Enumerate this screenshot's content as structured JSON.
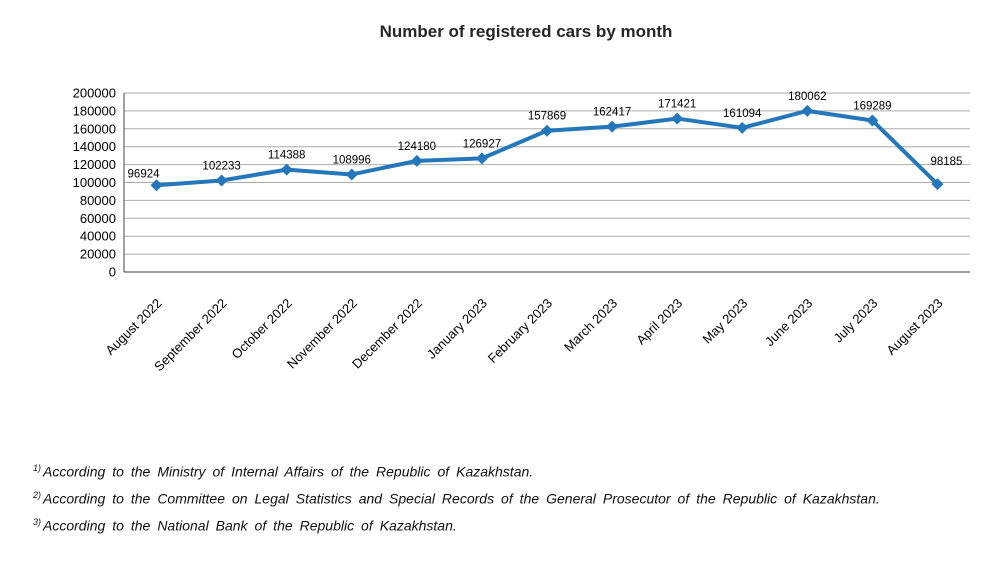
{
  "title": "Number of registered cars by month",
  "chart_data": {
    "type": "line",
    "title": "Number of registered cars by month",
    "categories": [
      "August 2022",
      "September 2022",
      "October 2022",
      "November 2022",
      "December 2022",
      "January 2023",
      "February 2023",
      "March 2023",
      "April 2023",
      "May 2023",
      "June 2023",
      "July 2023",
      "August 2023"
    ],
    "values": [
      96924,
      102233,
      114388,
      108996,
      124180,
      126927,
      157869,
      162417,
      171421,
      161094,
      180062,
      169289,
      98185
    ],
    "xlabel": "",
    "ylabel": "",
    "ylim": [
      0,
      200000
    ],
    "ytick_step": 20000,
    "yticks": [
      0,
      20000,
      40000,
      60000,
      80000,
      100000,
      120000,
      140000,
      160000,
      180000,
      200000
    ],
    "grid": true,
    "legend": "none",
    "data_labels": true,
    "marker": "diamond",
    "line_color": "#2577BB",
    "gridline_color": "#ABABAB",
    "axis_color": "#666666"
  },
  "footnotes": [
    {
      "sup": "1)",
      "text": "According to the Ministry of Internal Affairs of the Republic of Kazakhstan."
    },
    {
      "sup": "2)",
      "text": "According to the Committee on Legal Statistics and Special Records of the General Prosecutor of the Republic of Kazakhstan."
    },
    {
      "sup": "3)",
      "text": "According to the National Bank of the Republic of Kazakhstan."
    }
  ]
}
